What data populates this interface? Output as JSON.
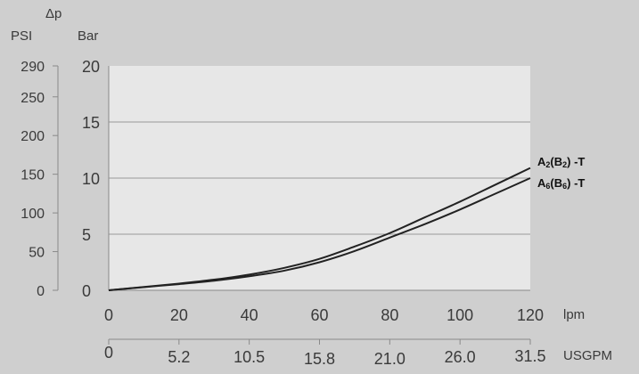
{
  "chart_data": {
    "type": "line",
    "delta_label": "Δp",
    "axes": {
      "psi": {
        "label": "PSI",
        "ticks": [
          "290",
          "250",
          "200",
          "150",
          "100",
          "50",
          "0"
        ],
        "tick_values": [
          290,
          250,
          200,
          150,
          100,
          50,
          0
        ]
      },
      "bar": {
        "label": "Bar",
        "ticks": [
          "20",
          "15",
          "10",
          "5",
          "0"
        ],
        "tick_values": [
          20,
          15,
          10,
          5,
          0
        ]
      },
      "lpm": {
        "label": "lpm",
        "ticks": [
          "0",
          "20",
          "40",
          "60",
          "80",
          "100",
          "120"
        ],
        "tick_values": [
          0,
          20,
          40,
          60,
          80,
          100,
          120
        ]
      },
      "usgpm": {
        "label": "USGPM",
        "ticks": [
          "0",
          "5.2",
          "10.5",
          "15.8",
          "21.0",
          "26.0",
          "31.5"
        ]
      }
    },
    "xlim": [
      0,
      120
    ],
    "ylim": [
      0,
      20
    ],
    "grid": true,
    "series": [
      {
        "name": "A2(B2) -T",
        "name_parts": {
          "a": "A",
          "a_sub": "2",
          "mid": "(B",
          "b_sub": "2",
          "tail": ") -T"
        },
        "x": [
          0,
          10,
          20,
          30,
          40,
          50,
          60,
          70,
          80,
          90,
          100,
          110,
          120
        ],
        "y": [
          0,
          0.3,
          0.6,
          0.95,
          1.4,
          2.0,
          2.8,
          3.9,
          5.1,
          6.5,
          7.9,
          9.4,
          10.9
        ]
      },
      {
        "name": "A6(B6) -T",
        "name_parts": {
          "a": "A",
          "a_sub": "6",
          "mid": "(B",
          "b_sub": "6",
          "tail": ") -T"
        },
        "x": [
          0,
          10,
          20,
          30,
          40,
          50,
          60,
          70,
          80,
          90,
          100,
          110,
          120
        ],
        "y": [
          0,
          0.28,
          0.55,
          0.85,
          1.25,
          1.75,
          2.5,
          3.5,
          4.7,
          5.9,
          7.2,
          8.6,
          10.0
        ]
      }
    ]
  },
  "colors": {
    "plot_bg": "#e7e7e7",
    "grid": "#9a9a9a",
    "axis": "#8a8a8a",
    "line": "#222222"
  }
}
